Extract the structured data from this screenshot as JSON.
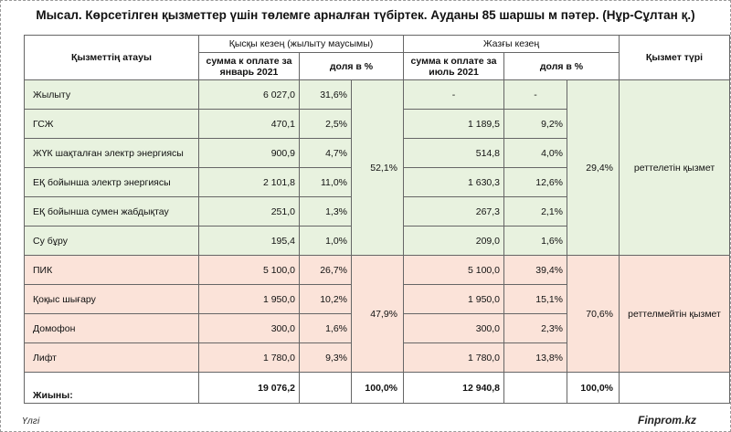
{
  "title": "Мысал. Көрсетілген қызметтер үшін төлемге арналған түбіртек. Ауданы 85 шаршы м пәтер. (Нұр-Сұлтан қ.)",
  "headers": {
    "service_name": "Қызметтің атауы",
    "short_period": "Қысқы кезең (жылыту маусымы)",
    "summer_period": "Жазғы кезең",
    "service_type": "Қызмет түрі",
    "sum_jan": "сумма к оплате за январь 2021",
    "share_jan": "доля в %",
    "sum_jul": "сумма к оплате за июль 2021",
    "share_jul": "доля в %"
  },
  "regulated_rows": [
    {
      "name": "Жылыту",
      "sum_jan": "6 027,0",
      "share_jan": "31,6%",
      "sum_jul": "-",
      "share_jul": "-"
    },
    {
      "name": "ГСЖ",
      "sum_jan": "470,1",
      "share_jan": "2,5%",
      "sum_jul": "1 189,5",
      "share_jul": "9,2%"
    },
    {
      "name": "ЖҮК шақталған электр энергиясы",
      "sum_jan": "900,9",
      "share_jan": "4,7%",
      "sum_jul": "514,8",
      "share_jul": "4,0%"
    },
    {
      "name": "ЕҚ бойынша электр энергиясы",
      "sum_jan": "2 101,8",
      "share_jan": "11,0%",
      "sum_jul": "1 630,3",
      "share_jul": "12,6%"
    },
    {
      "name": "ЕҚ бойынша сумен жабдықтау",
      "sum_jan": "251,0",
      "share_jan": "1,3%",
      "sum_jul": "267,3",
      "share_jul": "2,1%"
    },
    {
      "name": "Су бұру",
      "sum_jan": "195,4",
      "share_jan": "1,0%",
      "sum_jul": "209,0",
      "share_jul": "1,6%"
    }
  ],
  "regulated_group": {
    "share_jan_total": "52,1%",
    "share_jul_total": "29,4%",
    "type": "реттелетін қызмет"
  },
  "unregulated_rows": [
    {
      "name": "ПИК",
      "sum_jan": "5 100,0",
      "share_jan": "26,7%",
      "sum_jul": "5 100,0",
      "share_jul": "39,4%"
    },
    {
      "name": "Қоқыс шығару",
      "sum_jan": "1 950,0",
      "share_jan": "10,2%",
      "sum_jul": "1 950,0",
      "share_jul": "15,1%"
    },
    {
      "name": "Домофон",
      "sum_jan": "300,0",
      "share_jan": "1,6%",
      "sum_jul": "300,0",
      "share_jul": "2,3%"
    },
    {
      "name": "Лифт",
      "sum_jan": "1 780,0",
      "share_jan": "9,3%",
      "sum_jul": "1 780,0",
      "share_jul": "13,8%"
    }
  ],
  "unregulated_group": {
    "share_jan_total": "47,9%",
    "share_jul_total": "70,6%",
    "type": "реттелмейтін қызмет"
  },
  "total": {
    "label": "Жиыны:",
    "sum_jan": "19 076,2",
    "share_jan": "100,0%",
    "sum_jul": "12 940,8",
    "share_jul": "100,0%"
  },
  "footer": {
    "note": "Үлгі",
    "brand": "Finprom.kz"
  },
  "colors": {
    "regulated_bg": "#e8f2df",
    "unregulated_bg": "#fbe3d9"
  }
}
